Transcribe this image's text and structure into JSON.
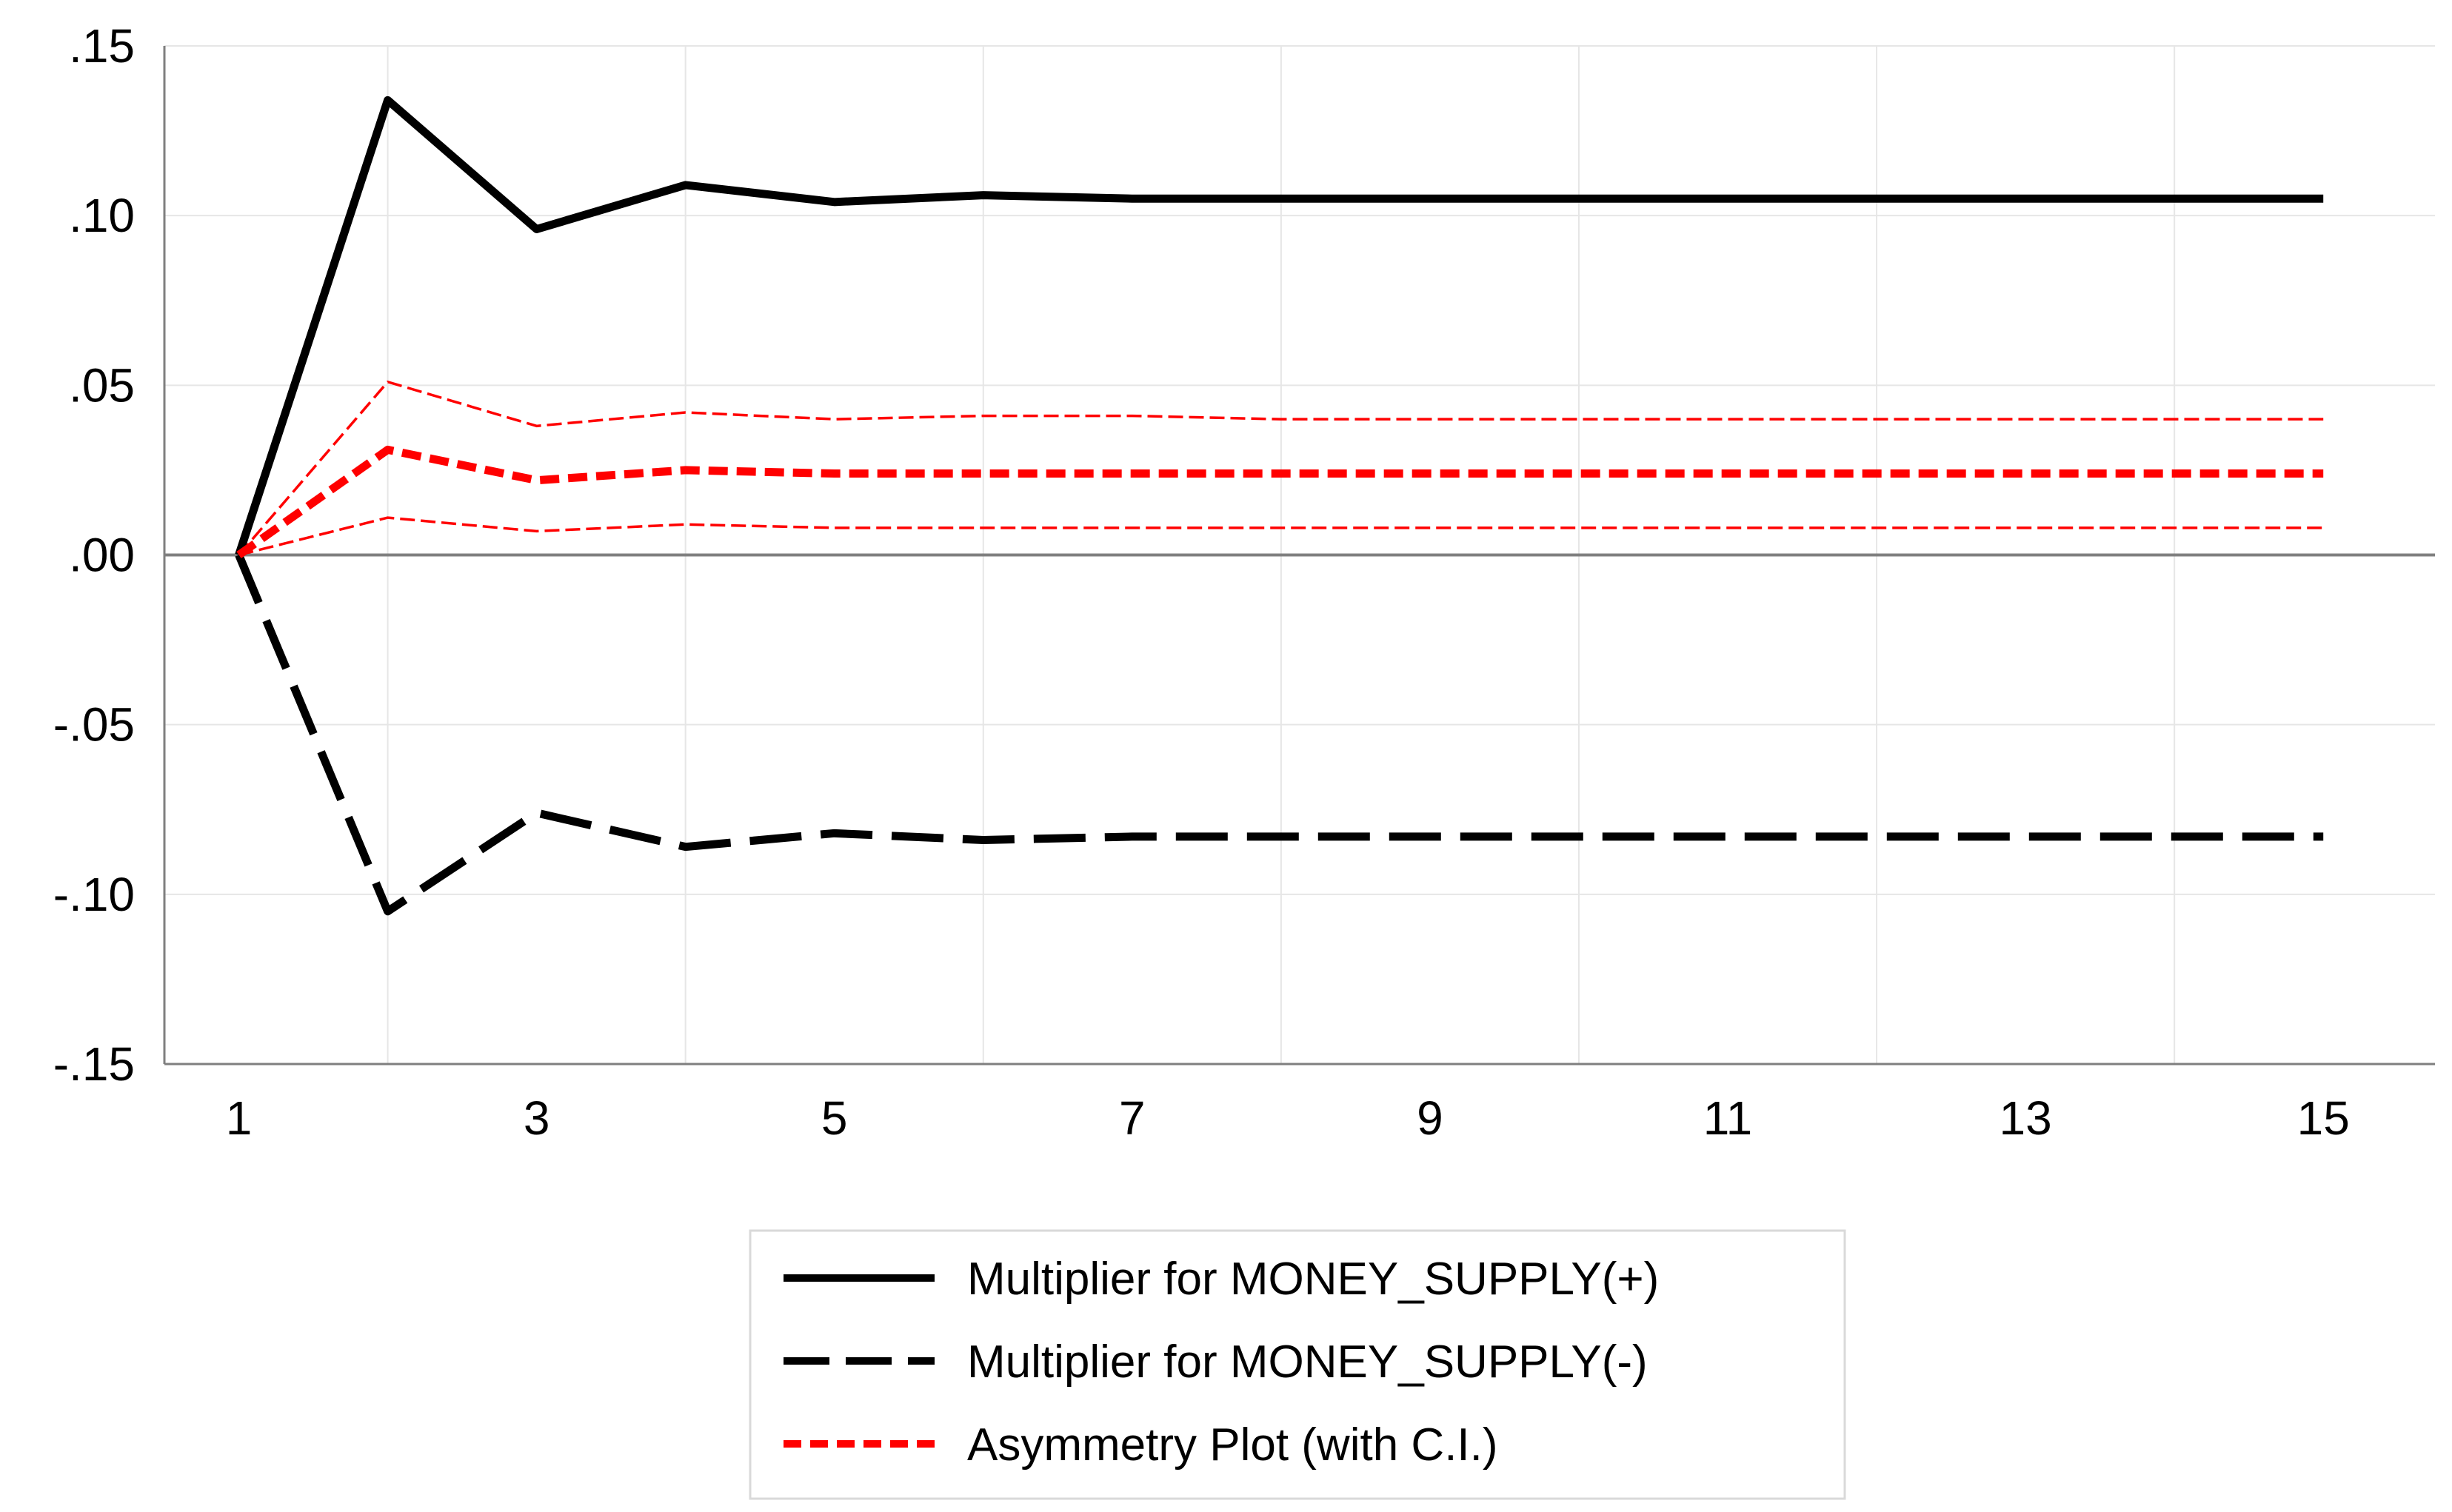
{
  "chart_data": {
    "type": "line",
    "x": [
      1,
      2,
      3,
      4,
      5,
      6,
      7,
      8,
      9,
      10,
      11,
      12,
      13,
      14,
      15
    ],
    "xticks": [
      "1",
      "3",
      "5",
      "7",
      "9",
      "11",
      "13",
      "15"
    ],
    "yticks": [
      ".15",
      ".10",
      ".05",
      ".00",
      "-.05",
      "-.10",
      "-.15"
    ],
    "ylim": [
      -0.15,
      0.15
    ],
    "xlim": [
      0.5,
      15.75
    ],
    "grid": true,
    "zero_line": true,
    "legend_position": "bottom-center",
    "series": [
      {
        "name": "Multiplier for MONEY_SUPPLY(+)",
        "style": "solid",
        "color": "#000000",
        "values": [
          0.0,
          0.134,
          0.096,
          0.109,
          0.104,
          0.106,
          0.105,
          0.105,
          0.105,
          0.105,
          0.105,
          0.105,
          0.105,
          0.105,
          0.105
        ]
      },
      {
        "name": "Multiplier for MONEY_SUPPLY(-)",
        "style": "longdash",
        "color": "#000000",
        "values": [
          0.0,
          -0.105,
          -0.076,
          -0.086,
          -0.082,
          -0.084,
          -0.083,
          -0.083,
          -0.083,
          -0.083,
          -0.083,
          -0.083,
          -0.083,
          -0.083,
          -0.083
        ]
      },
      {
        "name": "Asymmetry Plot (with C.I.)",
        "style": "dash",
        "color": "#ff0000",
        "values": [
          0.0,
          0.031,
          0.022,
          0.025,
          0.024,
          0.024,
          0.024,
          0.024,
          0.024,
          0.024,
          0.024,
          0.024,
          0.024,
          0.024,
          0.024
        ]
      }
    ],
    "confidence_interval": {
      "color": "#ff0000",
      "upper": [
        0.0,
        0.051,
        0.038,
        0.042,
        0.04,
        0.041,
        0.041,
        0.04,
        0.04,
        0.04,
        0.04,
        0.04,
        0.04,
        0.04,
        0.04
      ],
      "lower": [
        0.0,
        0.011,
        0.007,
        0.009,
        0.008,
        0.008,
        0.008,
        0.008,
        0.008,
        0.008,
        0.008,
        0.008,
        0.008,
        0.008,
        0.008
      ]
    }
  }
}
